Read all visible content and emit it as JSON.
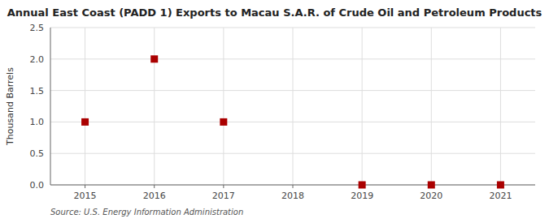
{
  "chart_data": {
    "type": "scatter",
    "title": "Annual East Coast (PADD 1) Exports to Macau S.A.R. of Crude Oil and Petroleum Products",
    "ylabel": "Thousand Barrels",
    "annotations": [
      "Source: U.S. Energy Information Administration"
    ],
    "x": [
      2015,
      2016,
      2017,
      2019,
      2020,
      2021
    ],
    "values": [
      1.0,
      2.0,
      1.0,
      0.0,
      0.0,
      0.0
    ],
    "color": "#AA0000",
    "marker": "square",
    "xlim": [
      2014.5,
      2021.5
    ],
    "xticks": [
      2015,
      2016,
      2017,
      2018,
      2019,
      2020,
      2021
    ],
    "ylim": [
      0.0,
      2.5
    ],
    "yticks": [
      {
        "value": 0.0,
        "label": "0.0"
      },
      {
        "value": 0.5,
        "label": "0.5"
      },
      {
        "value": 1.0,
        "label": "1.0"
      },
      {
        "value": 1.5,
        "label": "1.5"
      },
      {
        "value": 2.0,
        "label": "2.0"
      },
      {
        "value": 2.5,
        "label": "2.5"
      }
    ],
    "grid": true
  }
}
